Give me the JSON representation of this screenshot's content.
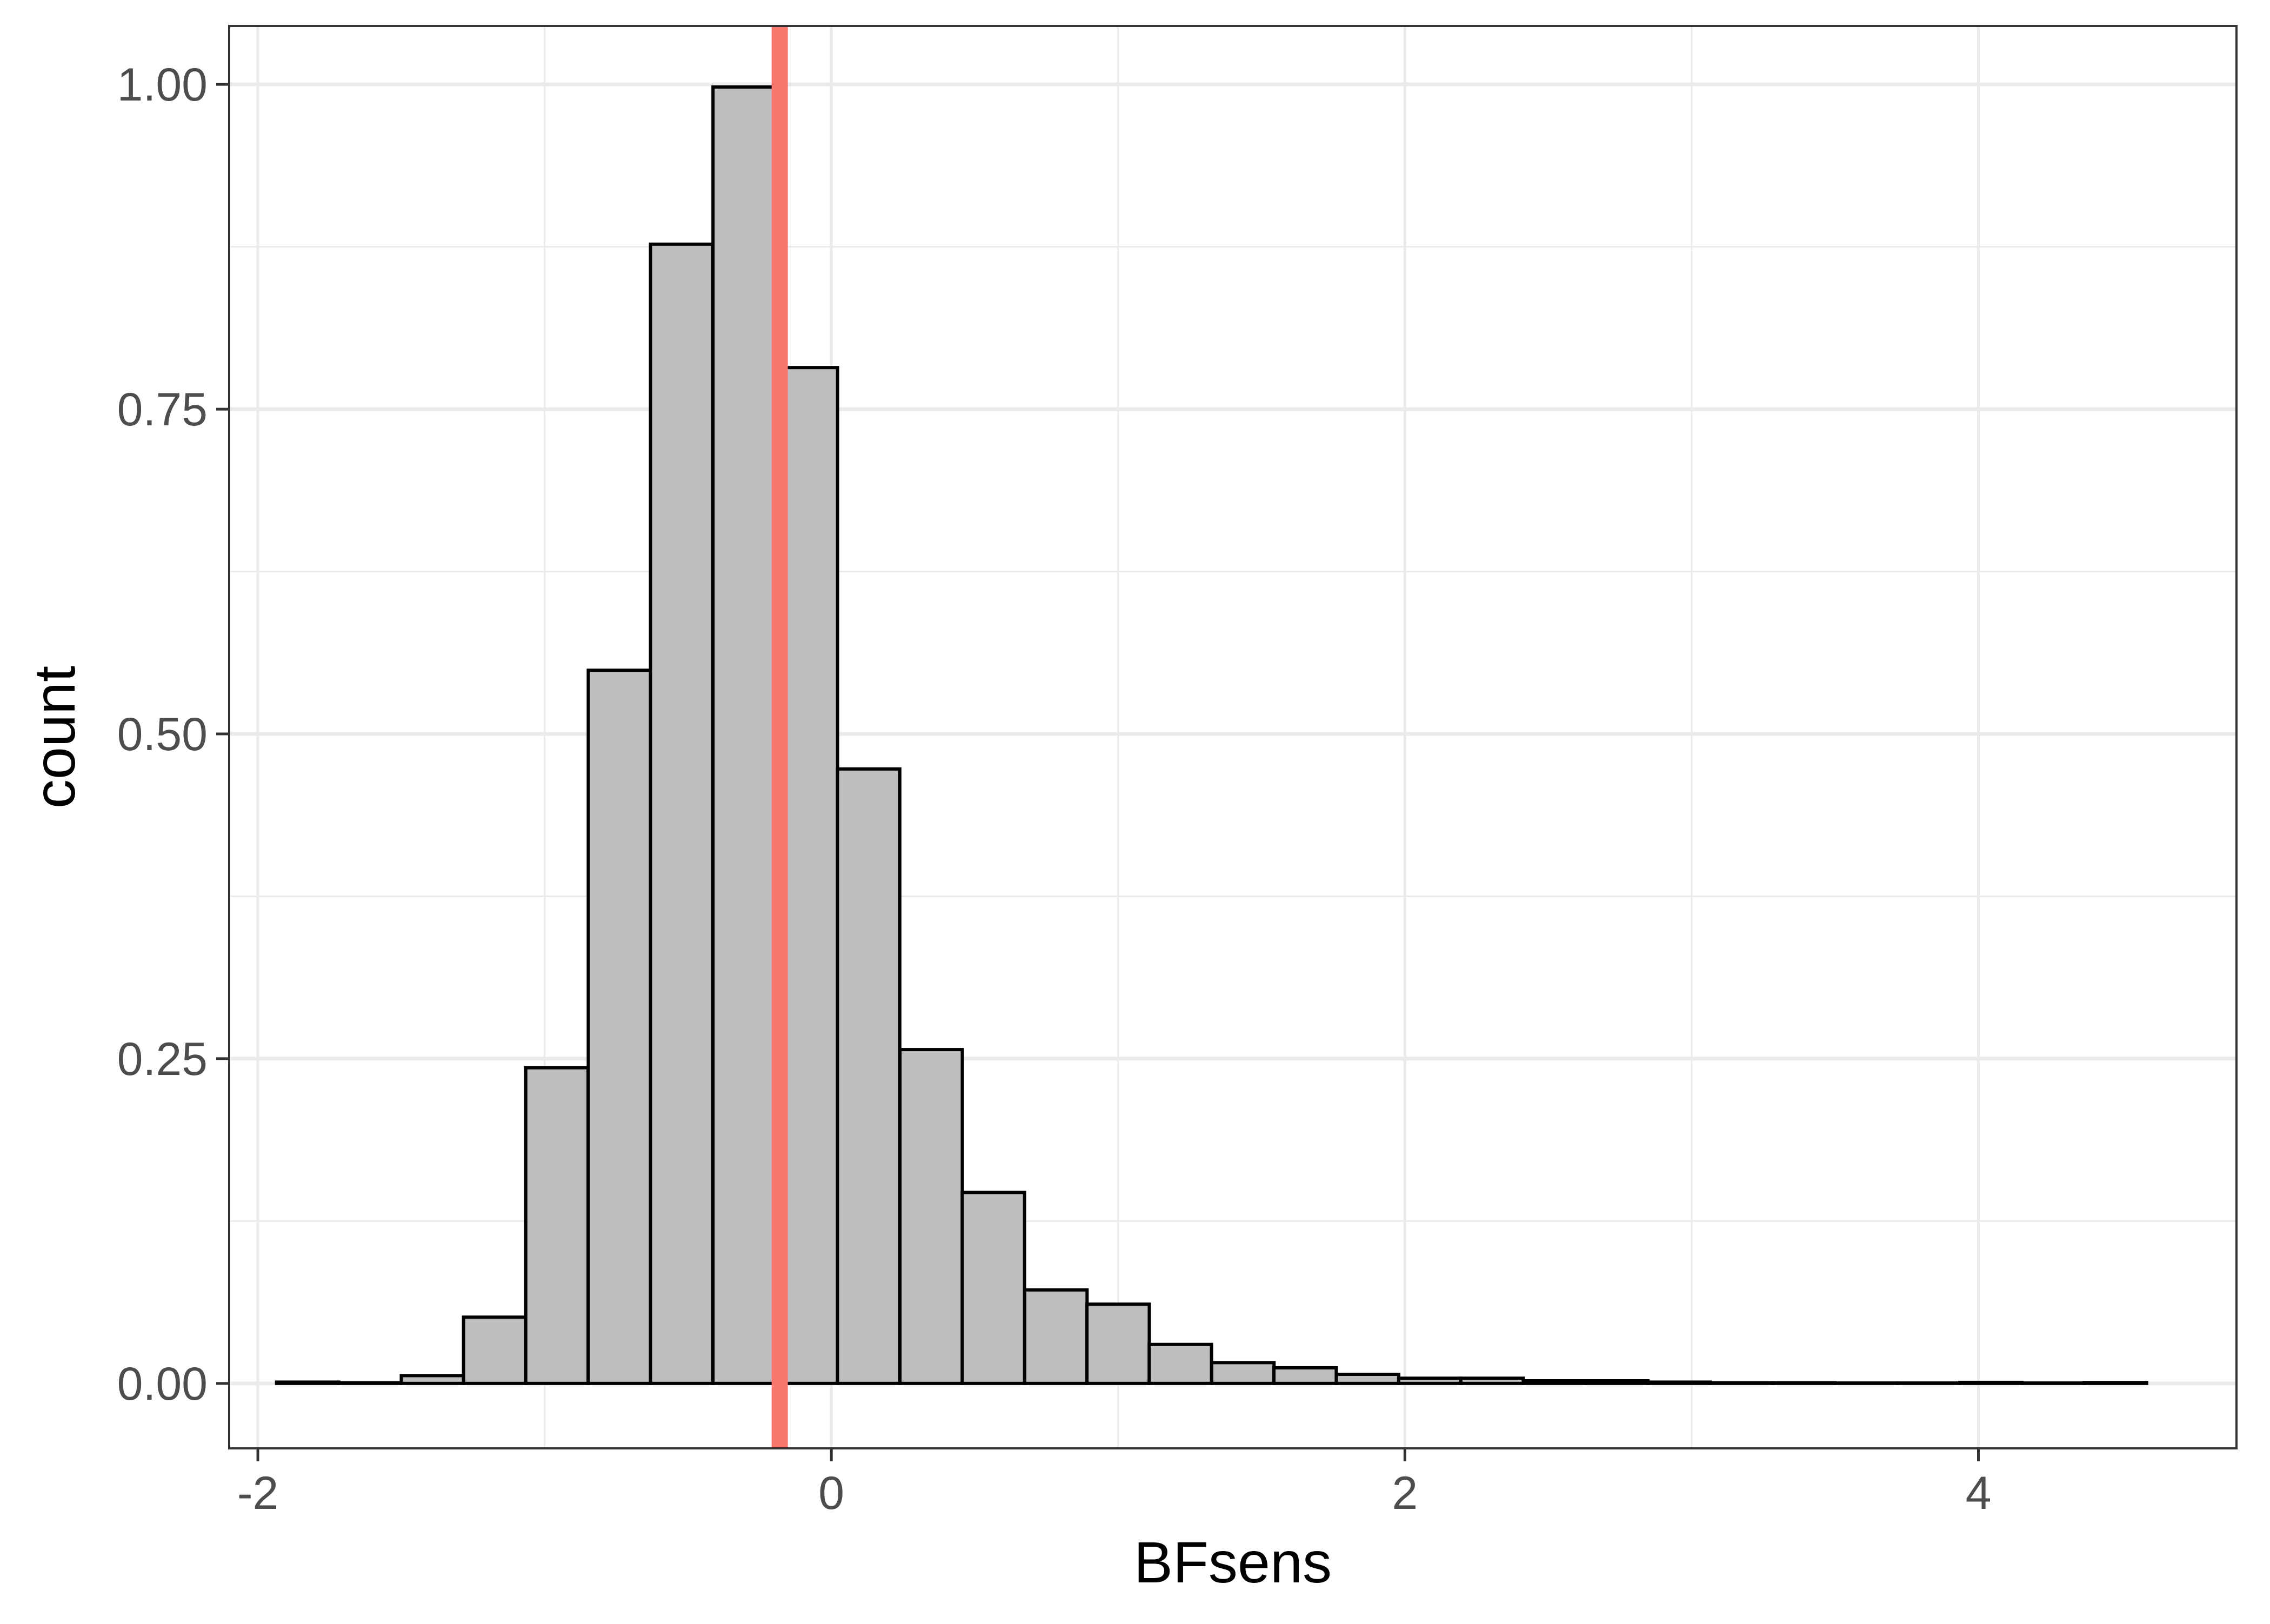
{
  "chart_data": {
    "type": "bar",
    "title": "",
    "xlabel": "BFsens",
    "ylabel": "count",
    "xlim": [
      -2.1,
      4.9
    ],
    "ylim": [
      -0.05,
      1.045
    ],
    "x_ticks": [
      {
        "value": -2,
        "label": "-2"
      },
      {
        "value": 0,
        "label": "0"
      },
      {
        "value": 2,
        "label": "2"
      },
      {
        "value": 4,
        "label": "4"
      }
    ],
    "y_ticks": [
      {
        "value": 0,
        "label": "0.00"
      },
      {
        "value": 0.25,
        "label": "0.25"
      },
      {
        "value": 0.5,
        "label": "0.50"
      },
      {
        "value": 0.75,
        "label": "0.75"
      },
      {
        "value": 1,
        "label": "1.00"
      }
    ],
    "bin_width": 0.2174,
    "bin_centers": [
      -1.826,
      -1.609,
      -1.391,
      -1.174,
      -0.957,
      -0.739,
      -0.522,
      -0.304,
      -0.087,
      0.13,
      0.348,
      0.565,
      0.783,
      1.0,
      1.217,
      1.435,
      1.652,
      1.87,
      2.087,
      2.304,
      2.522,
      2.739,
      2.957,
      3.174,
      3.391,
      3.609,
      3.826,
      4.043,
      4.261,
      4.478
    ],
    "values": [
      0.001,
      0.0005,
      0.006,
      0.051,
      0.243,
      0.549,
      0.877,
      0.998,
      0.782,
      0.473,
      0.257,
      0.147,
      0.072,
      0.061,
      0.03,
      0.016,
      0.012,
      0.007,
      0.004,
      0.004,
      0.002,
      0.002,
      0.001,
      0.0005,
      0.0005,
      0.0003,
      0.0003,
      0.0008,
      0.0003,
      0.0007
    ],
    "reference_line": {
      "x": -0.18,
      "color": "#F8766D"
    },
    "bar_fill": "#bebebe",
    "bar_stroke": "#000000",
    "grid": true,
    "legend": "none"
  }
}
